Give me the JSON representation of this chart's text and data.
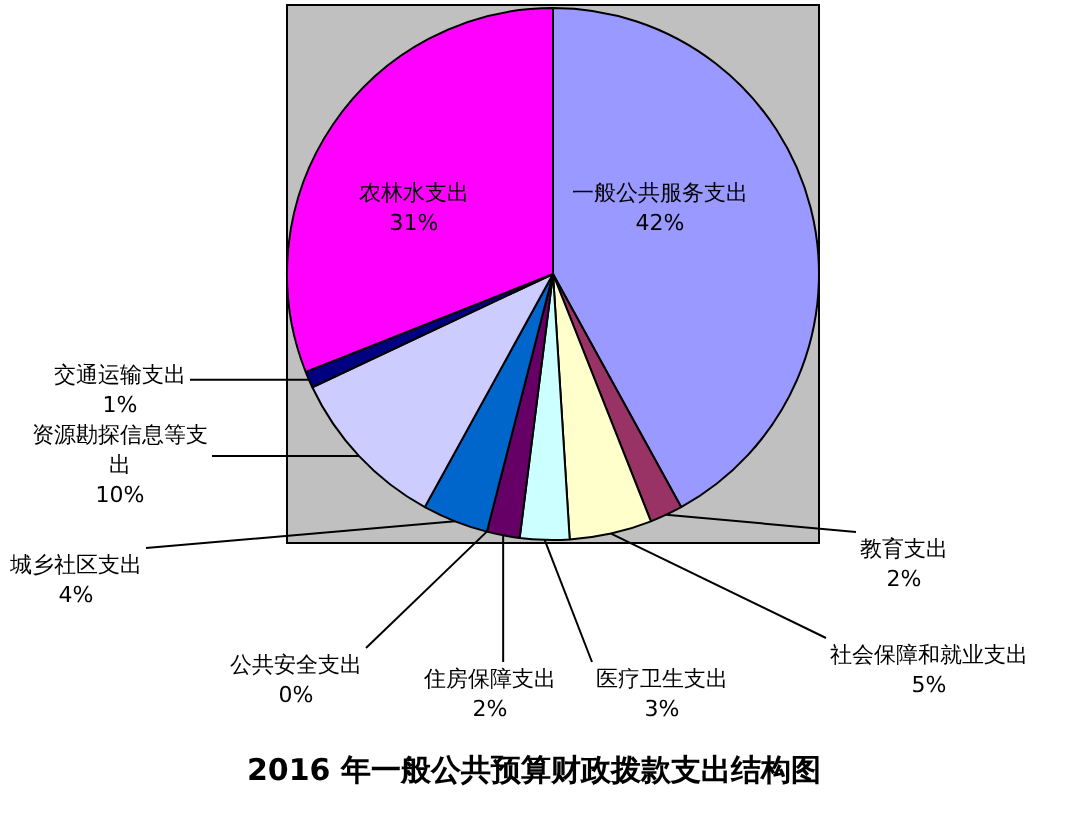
{
  "chart_data": {
    "type": "pie",
    "title": "2016 年一般公共预算财政拨款支出结构图",
    "categories": [
      "一般公共服务支出",
      "教育支出",
      "社会保障和就业支出",
      "医疗卫生支出",
      "住房保障支出",
      "公共安全支出",
      "城乡社区支出",
      "资源勘探信息等支出",
      "交通运输支出",
      "农林水支出"
    ],
    "values": [
      42,
      2,
      5,
      3,
      2,
      0,
      4,
      10,
      1,
      31
    ],
    "value_labels": [
      "42%",
      "2%",
      "5%",
      "3%",
      "2%",
      "0%",
      "4%",
      "10%",
      "1%",
      "31%"
    ],
    "colors": [
      "#9999ff",
      "#993366",
      "#ffffcc",
      "#ccffff",
      "#660066",
      "#ff8080",
      "#0066cc",
      "#ccccff",
      "#000080",
      "#ff00ff"
    ]
  }
}
